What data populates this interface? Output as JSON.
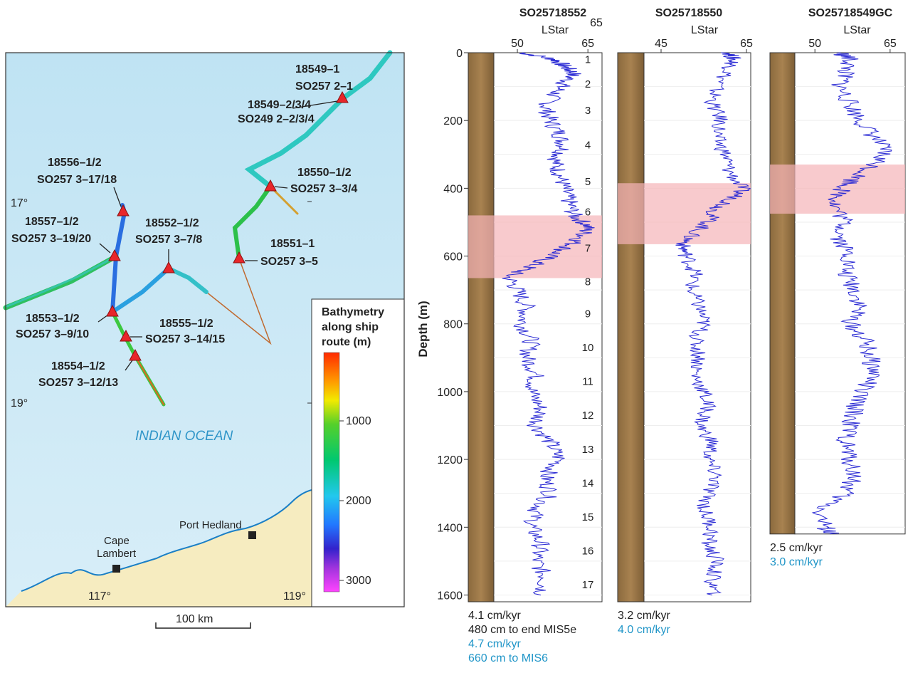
{
  "map": {
    "lat_labels": [
      "17°",
      "19°"
    ],
    "lon_labels": [
      "117°",
      "119°"
    ],
    "ocean_label": "INDIAN OCEAN",
    "scale_label": "100 km",
    "towns": [
      {
        "name_lines": [
          "Cape",
          "Lambert"
        ]
      },
      {
        "name_lines": [
          "Port Hedland"
        ]
      }
    ],
    "sites": [
      {
        "lines": [
          "18549–1",
          "SO257 2–1",
          "18549–2/3/4",
          "SO249 2–2/3/4"
        ]
      },
      {
        "lines": [
          "18550–1/2",
          "SO257 3–3/4"
        ]
      },
      {
        "lines": [
          "18551–1",
          "SO257 3–5"
        ]
      },
      {
        "lines": [
          "18552–1/2",
          "SO257 3–7/8"
        ]
      },
      {
        "lines": [
          "18553–1/2",
          "SO257 3–9/10"
        ]
      },
      {
        "lines": [
          "18554–1/2",
          "SO257 3–12/13"
        ]
      },
      {
        "lines": [
          "18555–1/2",
          "SO257 3–14/15"
        ]
      },
      {
        "lines": [
          "18556–1/2",
          "SO257 3–17/18"
        ]
      },
      {
        "lines": [
          "18557–1/2",
          "SO257 3–19/20"
        ]
      }
    ],
    "colorbar": {
      "title_lines": [
        "Bathymetry",
        "along ship",
        "route (m)"
      ],
      "ticks": [
        "1000",
        "2000",
        "3000"
      ],
      "colors": [
        "#ff3300",
        "#ff9900",
        "#ffee00",
        "#33cc33",
        "#00cc66",
        "#22ccee",
        "#2277ff",
        "#3322cc",
        "#aa33dd",
        "#ff44ff"
      ]
    }
  },
  "chart_data": {
    "type": "line",
    "ylabel": "Depth (m)",
    "y_ticks": [
      "0",
      "200",
      "400",
      "600",
      "800",
      "1000",
      "1200",
      "1400",
      "1600"
    ],
    "ylim": [
      0,
      1620
    ],
    "mis_labels": [
      "1",
      "2",
      "3",
      "4",
      "5",
      "6",
      "7",
      "8",
      "9",
      "10",
      "11",
      "12",
      "13",
      "14",
      "15",
      "16",
      "17"
    ],
    "mis_depths": [
      20,
      92,
      170,
      272,
      380,
      470,
      577,
      675,
      770,
      870,
      970,
      1070,
      1170,
      1270,
      1370,
      1470,
      1570
    ],
    "series_color": "#2a2ad4",
    "band_color": "#f5b3b8",
    "cores": [
      {
        "title": "SO25718552",
        "xlabel": "LStar",
        "x_ticks": [
          "50",
          "65"
        ],
        "x_tick_values": [
          50,
          65
        ],
        "top_right_label": "65",
        "xlim": [
          45,
          68
        ],
        "band": [
          480,
          665
        ],
        "core_bottom": 1620,
        "rate_lines": [
          {
            "text": "4.1 cm/kyr",
            "color": "black"
          },
          {
            "text": "480 cm to end MIS5e",
            "color": "black"
          },
          {
            "text": "4.7 cm/kyr",
            "color": "blue"
          },
          {
            "text": "660 cm to MIS6",
            "color": "blue"
          }
        ],
        "profile": [
          [
            0,
            51
          ],
          [
            20,
            58
          ],
          [
            40,
            60
          ],
          [
            60,
            62
          ],
          [
            90,
            60
          ],
          [
            120,
            58
          ],
          [
            160,
            56
          ],
          [
            200,
            57
          ],
          [
            240,
            59
          ],
          [
            280,
            60
          ],
          [
            320,
            58
          ],
          [
            360,
            59
          ],
          [
            400,
            60
          ],
          [
            440,
            61
          ],
          [
            480,
            62
          ],
          [
            510,
            65
          ],
          [
            540,
            64
          ],
          [
            570,
            61
          ],
          [
            600,
            57
          ],
          [
            630,
            53
          ],
          [
            660,
            48
          ],
          [
            700,
            50
          ],
          [
            750,
            52
          ],
          [
            800,
            51
          ],
          [
            850,
            53
          ],
          [
            900,
            52
          ],
          [
            950,
            54
          ],
          [
            1000,
            53
          ],
          [
            1050,
            55
          ],
          [
            1100,
            54
          ],
          [
            1150,
            57
          ],
          [
            1200,
            59
          ],
          [
            1250,
            56
          ],
          [
            1300,
            57
          ],
          [
            1350,
            54
          ],
          [
            1400,
            53
          ],
          [
            1450,
            55
          ],
          [
            1500,
            54
          ],
          [
            1550,
            56
          ],
          [
            1600,
            55
          ]
        ]
      },
      {
        "title": "SO25718550",
        "xlabel": "LStar",
        "x_ticks": [
          "45",
          "65"
        ],
        "x_tick_values": [
          45,
          65
        ],
        "xlim": [
          41,
          66
        ],
        "band": [
          385,
          565
        ],
        "core_bottom": 1620,
        "rate_lines": [
          {
            "text": "3.2 cm/kyr",
            "color": "black"
          },
          {
            "text": "4.0 cm/kyr",
            "color": "blue"
          }
        ],
        "profile": [
          [
            0,
            61
          ],
          [
            20,
            62
          ],
          [
            50,
            61
          ],
          [
            100,
            58
          ],
          [
            150,
            57
          ],
          [
            200,
            59
          ],
          [
            250,
            58
          ],
          [
            300,
            60
          ],
          [
            350,
            61
          ],
          [
            400,
            64
          ],
          [
            430,
            62
          ],
          [
            460,
            58
          ],
          [
            500,
            56
          ],
          [
            540,
            52
          ],
          [
            570,
            50
          ],
          [
            600,
            51
          ],
          [
            650,
            53
          ],
          [
            700,
            52
          ],
          [
            750,
            54
          ],
          [
            800,
            55
          ],
          [
            850,
            53
          ],
          [
            900,
            54
          ],
          [
            950,
            53
          ],
          [
            1000,
            55
          ],
          [
            1050,
            56
          ],
          [
            1100,
            54
          ],
          [
            1150,
            57
          ],
          [
            1200,
            56
          ],
          [
            1250,
            58
          ],
          [
            1300,
            56
          ],
          [
            1350,
            55
          ],
          [
            1400,
            57
          ],
          [
            1450,
            56
          ],
          [
            1500,
            58
          ],
          [
            1550,
            57
          ],
          [
            1600,
            57
          ]
        ]
      },
      {
        "title": "SO25718549GC",
        "xlabel": "LStar",
        "x_ticks": [
          "50",
          "65"
        ],
        "x_tick_values": [
          50,
          65
        ],
        "xlim": [
          46,
          68
        ],
        "band": [
          330,
          475
        ],
        "core_bottom": 1420,
        "rate_lines": [
          {
            "text": "2.5 cm/kyr",
            "color": "black"
          },
          {
            "text": "3.0 cm/kyr",
            "color": "blue"
          }
        ],
        "profile": [
          [
            0,
            55
          ],
          [
            20,
            57
          ],
          [
            60,
            56
          ],
          [
            100,
            55
          ],
          [
            150,
            57
          ],
          [
            200,
            59
          ],
          [
            250,
            62
          ],
          [
            290,
            64
          ],
          [
            330,
            62
          ],
          [
            370,
            58
          ],
          [
            410,
            55
          ],
          [
            450,
            54
          ],
          [
            500,
            56
          ],
          [
            550,
            55
          ],
          [
            600,
            57
          ],
          [
            650,
            56
          ],
          [
            700,
            58
          ],
          [
            750,
            59
          ],
          [
            800,
            57
          ],
          [
            850,
            60
          ],
          [
            900,
            61
          ],
          [
            950,
            62
          ],
          [
            1000,
            59
          ],
          [
            1050,
            58
          ],
          [
            1100,
            57
          ],
          [
            1150,
            56
          ],
          [
            1200,
            57
          ],
          [
            1250,
            58
          ],
          [
            1300,
            56
          ],
          [
            1350,
            51
          ],
          [
            1400,
            52
          ],
          [
            1420,
            53
          ]
        ]
      }
    ]
  }
}
